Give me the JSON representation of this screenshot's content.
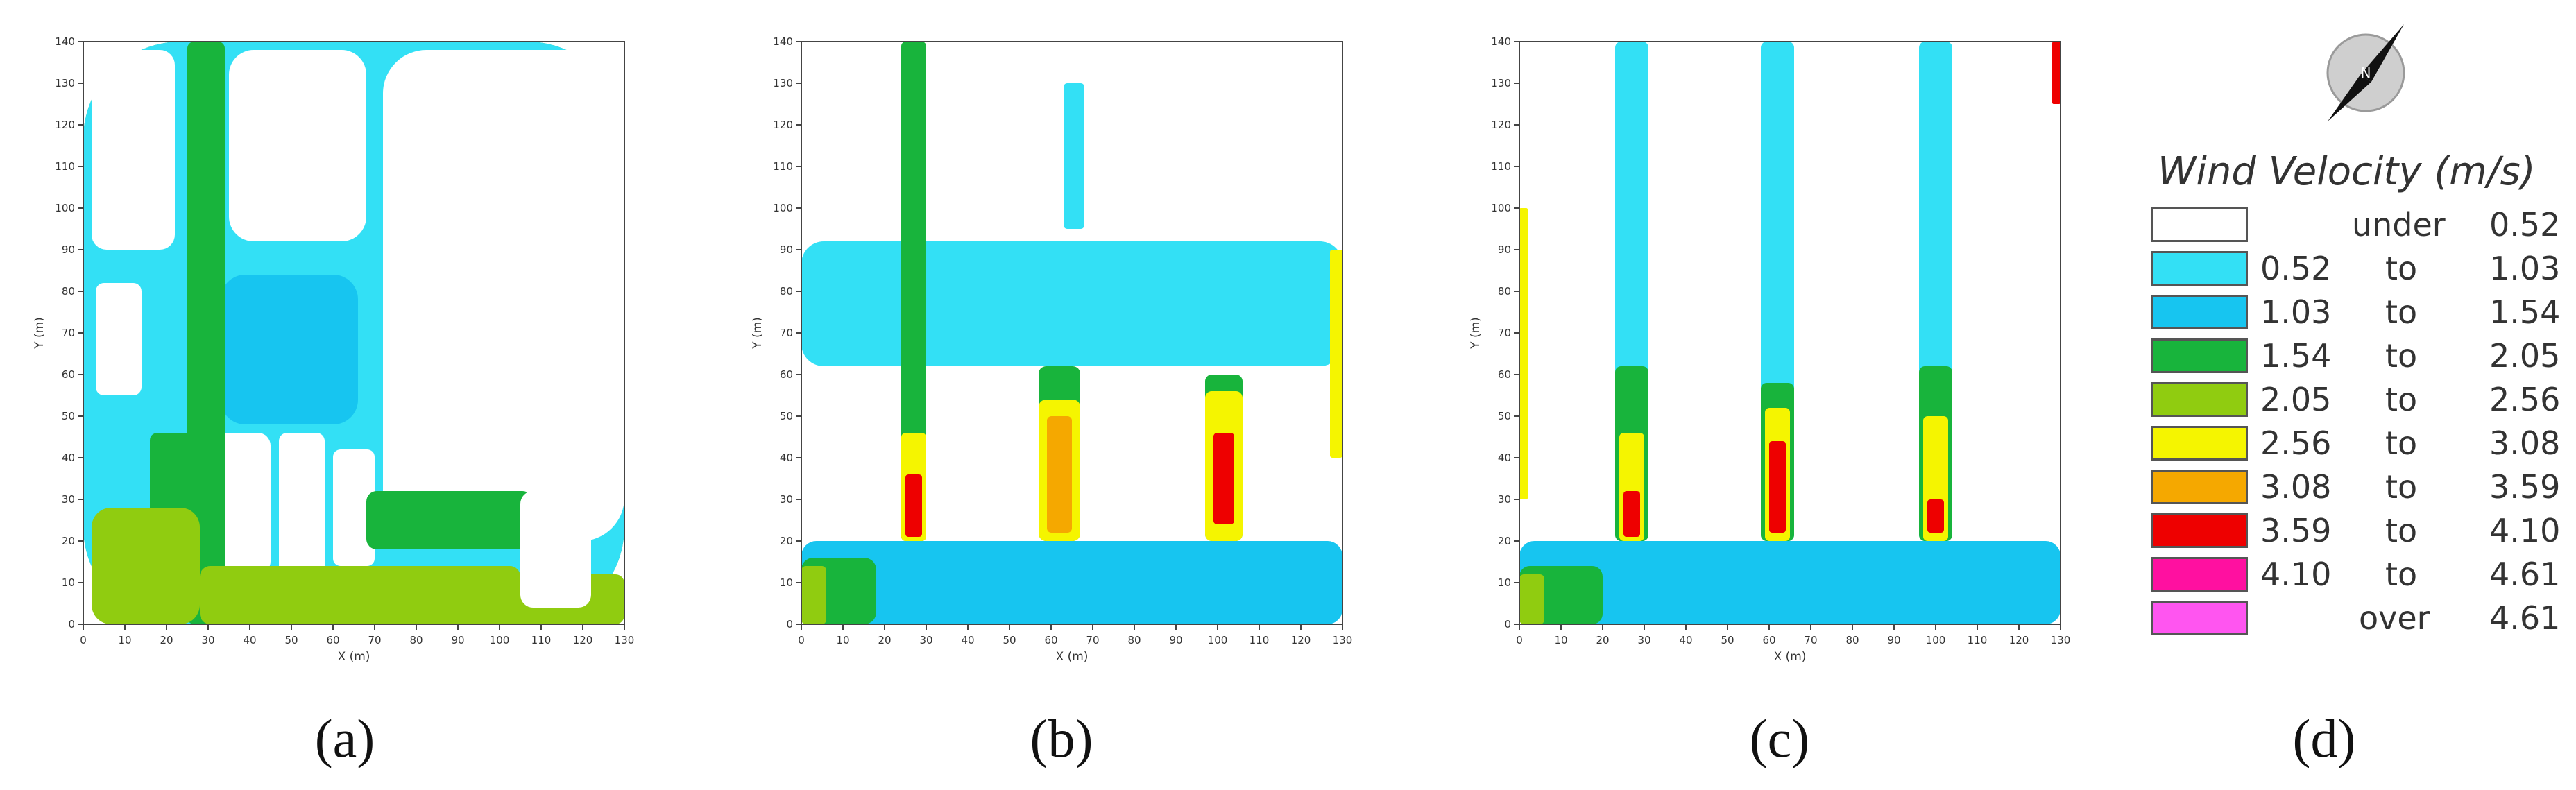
{
  "chart_data": [
    {
      "type": "heatmap",
      "panel": "(a)",
      "xlabel": "X (m)",
      "ylabel": "Y (m)",
      "xlim": [
        0,
        130
      ],
      "ylim": [
        0,
        140
      ],
      "xticks": [
        0,
        10,
        20,
        30,
        40,
        50,
        60,
        70,
        80,
        90,
        100,
        110,
        120,
        130
      ],
      "yticks": [
        0,
        10,
        20,
        30,
        40,
        50,
        60,
        70,
        80,
        90,
        100,
        110,
        120,
        130,
        140
      ],
      "regions": [
        {
          "cls": "1.54-2.05",
          "x": [
            0,
            130
          ],
          "y": [
            0,
            140
          ]
        },
        {
          "cls": "0.52-1.03",
          "x": [
            0,
            130
          ],
          "y": [
            0,
            140
          ]
        },
        {
          "cls": "under",
          "x": [
            2,
            22
          ],
          "y": [
            90,
            138
          ]
        },
        {
          "cls": "under",
          "x": [
            35,
            68
          ],
          "y": [
            92,
            138
          ]
        },
        {
          "cls": "under",
          "x": [
            72,
            130
          ],
          "y": [
            20,
            138
          ]
        },
        {
          "cls": "under",
          "x": [
            3,
            14
          ],
          "y": [
            55,
            82
          ]
        },
        {
          "cls": "under",
          "x": [
            28,
            45
          ],
          "y": [
            12,
            46
          ]
        },
        {
          "cls": "under",
          "x": [
            47,
            58
          ],
          "y": [
            12,
            46
          ]
        },
        {
          "cls": "under",
          "x": [
            60,
            70
          ],
          "y": [
            14,
            42
          ]
        },
        {
          "cls": "1.03-1.54",
          "x": [
            33,
            66
          ],
          "y": [
            48,
            84
          ]
        },
        {
          "cls": "1.54-2.05",
          "x": [
            25,
            34
          ],
          "y": [
            0,
            140
          ]
        },
        {
          "cls": "1.54-2.05",
          "x": [
            16,
            26
          ],
          "y": [
            12,
            46
          ]
        },
        {
          "cls": "1.54-2.05",
          "x": [
            68,
            108
          ],
          "y": [
            18,
            32
          ]
        },
        {
          "cls": "2.05-2.56",
          "x": [
            2,
            28
          ],
          "y": [
            0,
            28
          ]
        },
        {
          "cls": "2.05-2.56",
          "x": [
            28,
            105
          ],
          "y": [
            0,
            14
          ]
        },
        {
          "cls": "2.05-2.56",
          "x": [
            100,
            130
          ],
          "y": [
            0,
            12
          ]
        },
        {
          "cls": "under",
          "x": [
            105,
            122
          ],
          "y": [
            4,
            32
          ]
        }
      ]
    },
    {
      "type": "heatmap",
      "panel": "(b)",
      "xlabel": "X (m)",
      "ylabel": "Y (m)",
      "xlim": [
        0,
        130
      ],
      "ylim": [
        0,
        140
      ],
      "xticks": [
        0,
        10,
        20,
        30,
        40,
        50,
        60,
        70,
        80,
        90,
        100,
        110,
        120,
        130
      ],
      "yticks": [
        0,
        10,
        20,
        30,
        40,
        50,
        60,
        70,
        80,
        90,
        100,
        110,
        120,
        130,
        140
      ],
      "regions": [
        {
          "cls": "under",
          "x": [
            0,
            130
          ],
          "y": [
            0,
            140
          ]
        },
        {
          "cls": "0.52-1.03",
          "x": [
            0,
            130
          ],
          "y": [
            62,
            92
          ]
        },
        {
          "cls": "1.03-1.54",
          "x": [
            0,
            130
          ],
          "y": [
            0,
            20
          ]
        },
        {
          "cls": "1.54-2.05",
          "x": [
            0,
            18
          ],
          "y": [
            0,
            16
          ]
        },
        {
          "cls": "1.54-2.05",
          "x": [
            24,
            30
          ],
          "y": [
            20,
            140
          ]
        },
        {
          "cls": "1.54-2.05",
          "x": [
            57,
            67
          ],
          "y": [
            20,
            62
          ]
        },
        {
          "cls": "1.54-2.05",
          "x": [
            97,
            106
          ],
          "y": [
            20,
            60
          ]
        },
        {
          "cls": "2.56-3.08",
          "x": [
            24,
            30
          ],
          "y": [
            20,
            46
          ]
        },
        {
          "cls": "2.56-3.08",
          "x": [
            57,
            67
          ],
          "y": [
            20,
            54
          ]
        },
        {
          "cls": "2.56-3.08",
          "x": [
            97,
            106
          ],
          "y": [
            20,
            56
          ]
        },
        {
          "cls": "3.08-3.59",
          "x": [
            59,
            65
          ],
          "y": [
            22,
            50
          ]
        },
        {
          "cls": "3.59-4.10",
          "x": [
            25,
            29
          ],
          "y": [
            21,
            36
          ]
        },
        {
          "cls": "3.59-4.10",
          "x": [
            99,
            104
          ],
          "y": [
            24,
            46
          ]
        },
        {
          "cls": "0.52-1.03",
          "x": [
            63,
            68
          ],
          "y": [
            95,
            130
          ]
        },
        {
          "cls": "2.05-2.56",
          "x": [
            0,
            6
          ],
          "y": [
            0,
            14
          ]
        },
        {
          "cls": "2.56-3.08",
          "x": [
            127,
            130
          ],
          "y": [
            40,
            90
          ]
        }
      ]
    },
    {
      "type": "heatmap",
      "panel": "(c)",
      "xlabel": "X (m)",
      "ylabel": "Y (m)",
      "xlim": [
        0,
        130
      ],
      "ylim": [
        0,
        140
      ],
      "xticks": [
        0,
        10,
        20,
        30,
        40,
        50,
        60,
        70,
        80,
        90,
        100,
        110,
        120,
        130
      ],
      "yticks": [
        0,
        10,
        20,
        30,
        40,
        50,
        60,
        70,
        80,
        90,
        100,
        110,
        120,
        130,
        140
      ],
      "regions": [
        {
          "cls": "under",
          "x": [
            0,
            130
          ],
          "y": [
            0,
            140
          ]
        },
        {
          "cls": "1.03-1.54",
          "x": [
            0,
            130
          ],
          "y": [
            0,
            20
          ]
        },
        {
          "cls": "1.54-2.05",
          "x": [
            0,
            20
          ],
          "y": [
            0,
            14
          ]
        },
        {
          "cls": "0.52-1.03",
          "x": [
            23,
            31
          ],
          "y": [
            20,
            140
          ]
        },
        {
          "cls": "0.52-1.03",
          "x": [
            58,
            66
          ],
          "y": [
            20,
            140
          ]
        },
        {
          "cls": "0.52-1.03",
          "x": [
            96,
            104
          ],
          "y": [
            20,
            140
          ]
        },
        {
          "cls": "1.54-2.05",
          "x": [
            23,
            31
          ],
          "y": [
            20,
            62
          ]
        },
        {
          "cls": "1.54-2.05",
          "x": [
            58,
            66
          ],
          "y": [
            20,
            58
          ]
        },
        {
          "cls": "1.54-2.05",
          "x": [
            96,
            104
          ],
          "y": [
            20,
            62
          ]
        },
        {
          "cls": "2.56-3.08",
          "x": [
            24,
            30
          ],
          "y": [
            20,
            46
          ]
        },
        {
          "cls": "2.56-3.08",
          "x": [
            59,
            65
          ],
          "y": [
            20,
            52
          ]
        },
        {
          "cls": "2.56-3.08",
          "x": [
            97,
            103
          ],
          "y": [
            20,
            50
          ]
        },
        {
          "cls": "3.59-4.10",
          "x": [
            25,
            29
          ],
          "y": [
            21,
            32
          ]
        },
        {
          "cls": "3.59-4.10",
          "x": [
            60,
            64
          ],
          "y": [
            22,
            44
          ]
        },
        {
          "cls": "3.59-4.10",
          "x": [
            98,
            102
          ],
          "y": [
            22,
            30
          ]
        },
        {
          "cls": "2.05-2.56",
          "x": [
            0,
            6
          ],
          "y": [
            0,
            12
          ]
        },
        {
          "cls": "2.56-3.08",
          "x": [
            0,
            2
          ],
          "y": [
            30,
            100
          ]
        },
        {
          "cls": "3.59-4.10",
          "x": [
            128,
            130
          ],
          "y": [
            125,
            140
          ]
        }
      ]
    }
  ],
  "captions": {
    "a": "(a)",
    "b": "(b)",
    "c": "(c)",
    "d": "(d)"
  },
  "legend": {
    "title": "Wind Velocity (m/s)",
    "compass_letter": "N",
    "items": [
      {
        "key": "under",
        "lo": "",
        "mid": "under",
        "hi": "0.52",
        "color": "#ffffff"
      },
      {
        "key": "0.52-1.03",
        "lo": "0.52",
        "mid": "to",
        "hi": "1.03",
        "color": "#33e0f5"
      },
      {
        "key": "1.03-1.54",
        "lo": "1.03",
        "mid": "to",
        "hi": "1.54",
        "color": "#17c5f0"
      },
      {
        "key": "1.54-2.05",
        "lo": "1.54",
        "mid": "to",
        "hi": "2.05",
        "color": "#18b43c"
      },
      {
        "key": "2.05-2.56",
        "lo": "2.05",
        "mid": "to",
        "hi": "2.56",
        "color": "#90cc10"
      },
      {
        "key": "2.56-3.08",
        "lo": "2.56",
        "mid": "to",
        "hi": "3.08",
        "color": "#f5f500"
      },
      {
        "key": "3.08-3.59",
        "lo": "3.08",
        "mid": "to",
        "hi": "3.59",
        "color": "#f5a800"
      },
      {
        "key": "3.59-4.10",
        "lo": "3.59",
        "mid": "to",
        "hi": "4.10",
        "color": "#ee0000"
      },
      {
        "key": "4.10-4.61",
        "lo": "4.10",
        "mid": "to",
        "hi": "4.61",
        "color": "#ff10a0"
      },
      {
        "key": "over",
        "lo": "",
        "mid": "over",
        "hi": "4.61",
        "color": "#ff55f0"
      }
    ]
  }
}
